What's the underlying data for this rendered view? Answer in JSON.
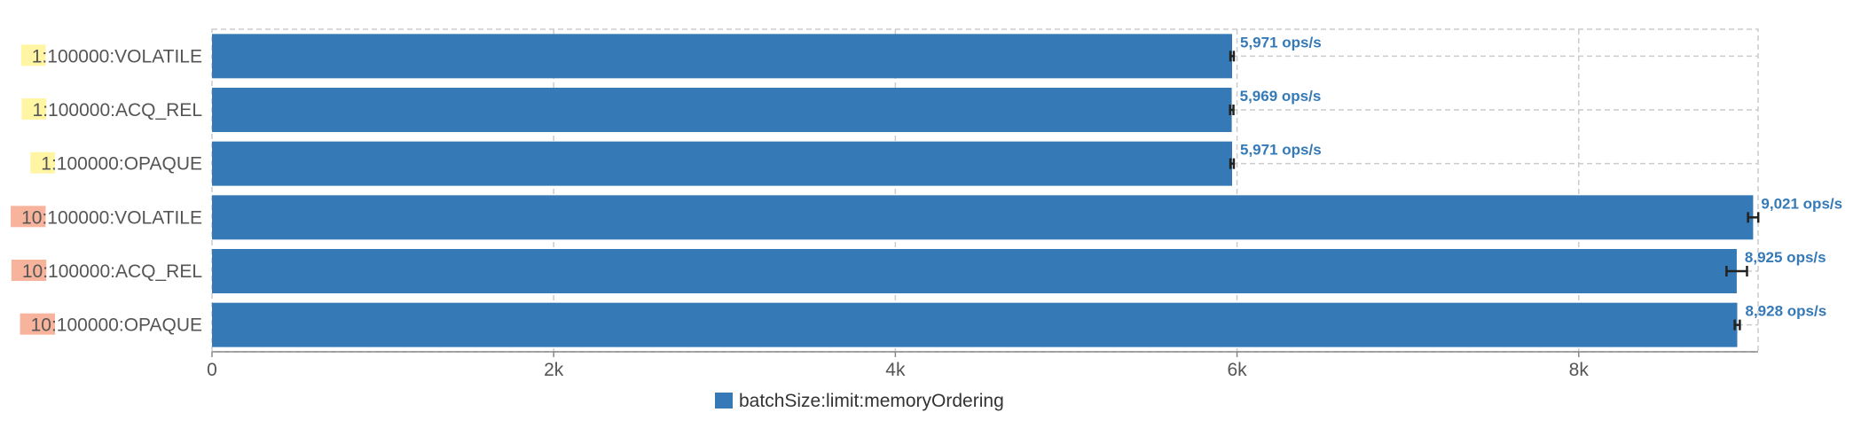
{
  "chart_data": {
    "type": "bar",
    "orientation": "horizontal",
    "categories": [
      "1:100000:VOLATILE",
      "1:100000:ACQ_REL",
      "1:100000:OPAQUE",
      "10:100000:VOLATILE",
      "10:100000:ACQ_REL",
      "10:100000:OPAQUE"
    ],
    "category_highlights": [
      {
        "text": "1",
        "rest": ":100000:VOLATILE",
        "color": "#fff5a3"
      },
      {
        "text": "1",
        "rest": ":100000:ACQ_REL",
        "color": "#fff5a3"
      },
      {
        "text": "1",
        "rest": ":100000:OPAQUE",
        "color": "#fff5a3"
      },
      {
        "text": "10",
        "rest": ":100000:VOLATILE",
        "color": "#f7b39b"
      },
      {
        "text": "10",
        "rest": ":100000:ACQ_REL",
        "color": "#f7b39b"
      },
      {
        "text": "10",
        "rest": ":100000:OPAQUE",
        "color": "#f7b39b"
      }
    ],
    "series": [
      {
        "name": "batchSize:limit:memoryOrdering",
        "color": "#357ab7",
        "values": [
          5971,
          5969,
          5971,
          9021,
          8925,
          8928
        ],
        "error": [
          10,
          10,
          10,
          30,
          60,
          15
        ],
        "value_labels": [
          "5,971 ops/s",
          "5,969 ops/s",
          "5,971 ops/s",
          "9,021 ops/s",
          "8,925 ops/s",
          "8,928 ops/s"
        ]
      }
    ],
    "x_ticks": [
      0,
      2000,
      4000,
      6000,
      8000
    ],
    "x_tick_labels": [
      "0",
      "2k",
      "4k",
      "6k",
      "8k"
    ],
    "xlim": [
      0,
      9050
    ],
    "grid": true,
    "legend_position": "bottom-center",
    "legend_label": "batchSize:limit:memoryOrdering",
    "label_color": "#357ab7",
    "grid_color": "#cccccc",
    "errorbar_color": "#222222"
  }
}
